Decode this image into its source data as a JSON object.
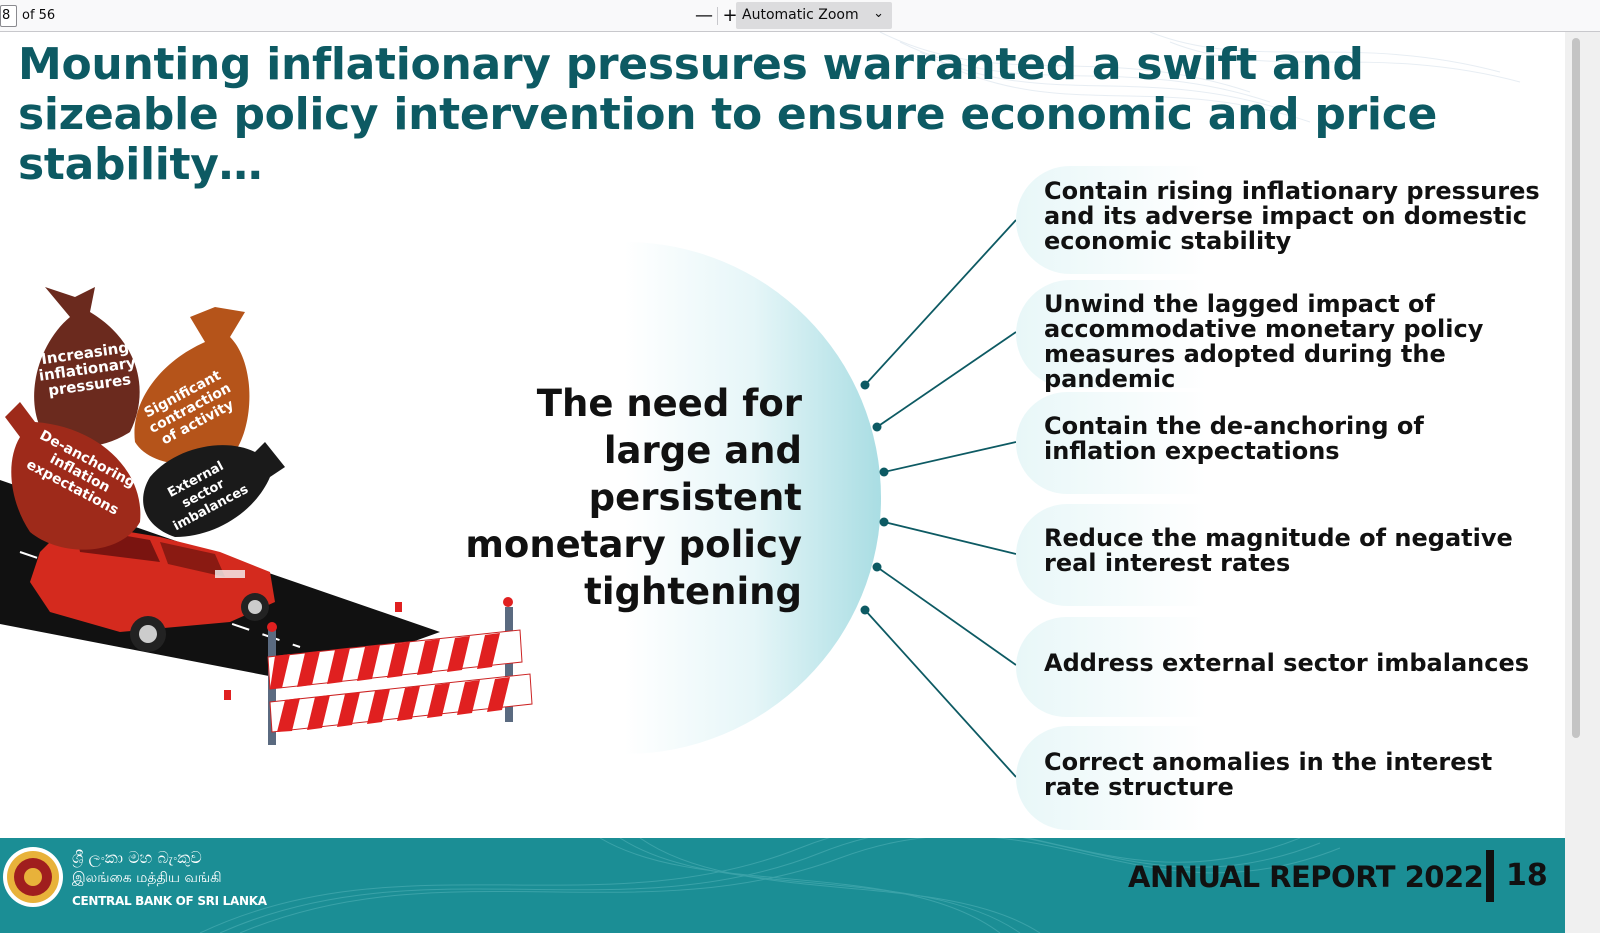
{
  "viewer": {
    "page_number": "8",
    "page_of": "of 56",
    "zoom_out": "—",
    "zoom_in": "+",
    "zoom_label": "Automatic Zoom",
    "zoom_chevron": "⌄"
  },
  "slide": {
    "title": "Mounting inflationary pressures warranted a swift and sizeable policy intervention to ensure economic and price stability…",
    "center_text": "The need for large and persistent monetary policy tightening",
    "illustration": {
      "bags": [
        "Increasing inflationary pressures",
        "Significant contraction of activity",
        "De-anchoring inflation expectations",
        "External sector imbalances"
      ]
    },
    "objectives": [
      "Contain rising inflationary pressures and its adverse impact on domestic economic stability",
      "Unwind the lagged impact of accommodative monetary policy measures adopted during the pandemic",
      "Contain the de-anchoring of inflation expectations",
      "Reduce the magnitude of negative real interest rates",
      "Address external sector imbalances",
      "Correct anomalies in the interest rate structure"
    ],
    "colors": {
      "title": "#0d5a63",
      "footer": "#1b8e95",
      "connector": "#0d5a63",
      "bag_brown": "#6b2a1e",
      "bag_orange": "#b5541a",
      "bag_red": "#9e2a1a",
      "bag_black": "#1a1a1a",
      "car_red": "#d42a1e"
    }
  },
  "footer": {
    "sinhala": "ශ්‍රී ලංකා මහ බැංකුව",
    "tamil": "இலங்கை மத்திய வங்கி",
    "english": "CENTRAL BANK OF SRI LANKA",
    "report": "ANNUAL REPORT 2022",
    "page": "18"
  }
}
